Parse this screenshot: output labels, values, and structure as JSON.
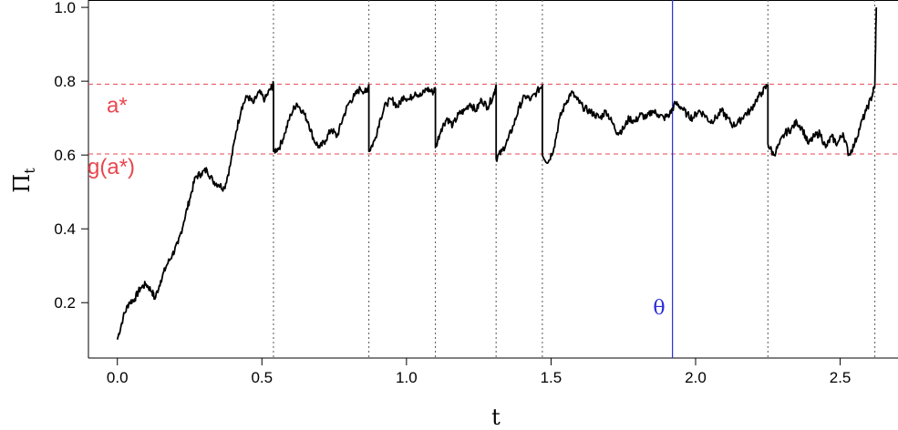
{
  "chart_data": {
    "type": "line",
    "title": "",
    "xlabel": "t",
    "ylabel_main": "Π",
    "ylabel_sub": "t",
    "xlim": [
      -0.1,
      2.7
    ],
    "ylim": [
      0.05,
      1.02
    ],
    "x_ticks": [
      0.0,
      0.5,
      1.0,
      1.5,
      2.0,
      2.5
    ],
    "x_tick_labels": [
      "0.0",
      "0.5",
      "1.0",
      "1.5",
      "2.0",
      "2.5"
    ],
    "y_ticks": [
      0.2,
      0.4,
      0.6,
      0.8,
      1.0
    ],
    "y_tick_labels": [
      "0.2",
      "0.4",
      "0.6",
      "0.8",
      "1.0"
    ],
    "grid": false,
    "colors": {
      "path": "#000000",
      "threshold": "#e8474f",
      "theta": "#2b2bd9",
      "reset": "#555555"
    },
    "h_lines": [
      {
        "y": 0.792,
        "label": "a*"
      },
      {
        "y": 0.603,
        "label": "g(a*)"
      }
    ],
    "v_reset_lines": [
      0.54,
      0.87,
      1.1,
      1.31,
      1.47,
      2.25,
      2.62
    ],
    "theta_line": {
      "x": 1.92,
      "label": "θ"
    },
    "series": [
      {
        "values": [
          [
            0.0,
            0.1
          ],
          [
            0.02,
            0.16
          ],
          [
            0.04,
            0.2
          ],
          [
            0.06,
            0.21
          ],
          [
            0.08,
            0.24
          ],
          [
            0.1,
            0.25
          ],
          [
            0.12,
            0.23
          ],
          [
            0.13,
            0.21
          ],
          [
            0.15,
            0.26
          ],
          [
            0.17,
            0.3
          ],
          [
            0.19,
            0.33
          ],
          [
            0.21,
            0.36
          ],
          [
            0.23,
            0.42
          ],
          [
            0.25,
            0.48
          ],
          [
            0.27,
            0.54
          ],
          [
            0.29,
            0.55
          ],
          [
            0.31,
            0.56
          ],
          [
            0.33,
            0.53
          ],
          [
            0.35,
            0.52
          ],
          [
            0.37,
            0.51
          ],
          [
            0.39,
            0.57
          ],
          [
            0.41,
            0.66
          ],
          [
            0.43,
            0.73
          ],
          [
            0.45,
            0.76
          ],
          [
            0.47,
            0.74
          ],
          [
            0.49,
            0.77
          ],
          [
            0.51,
            0.75
          ],
          [
            0.53,
            0.78
          ],
          [
            0.54,
            0.79
          ],
          [
            0.54,
            0.61
          ],
          [
            0.56,
            0.62
          ],
          [
            0.58,
            0.66
          ],
          [
            0.6,
            0.71
          ],
          [
            0.62,
            0.74
          ],
          [
            0.64,
            0.72
          ],
          [
            0.66,
            0.69
          ],
          [
            0.68,
            0.64
          ],
          [
            0.7,
            0.62
          ],
          [
            0.72,
            0.64
          ],
          [
            0.74,
            0.67
          ],
          [
            0.76,
            0.65
          ],
          [
            0.78,
            0.7
          ],
          [
            0.8,
            0.74
          ],
          [
            0.82,
            0.76
          ],
          [
            0.84,
            0.78
          ],
          [
            0.86,
            0.77
          ],
          [
            0.87,
            0.79
          ],
          [
            0.87,
            0.61
          ],
          [
            0.89,
            0.64
          ],
          [
            0.91,
            0.7
          ],
          [
            0.93,
            0.74
          ],
          [
            0.95,
            0.75
          ],
          [
            0.97,
            0.73
          ],
          [
            0.99,
            0.76
          ],
          [
            1.01,
            0.75
          ],
          [
            1.03,
            0.77
          ],
          [
            1.05,
            0.76
          ],
          [
            1.07,
            0.78
          ],
          [
            1.09,
            0.77
          ],
          [
            1.1,
            0.78
          ],
          [
            1.1,
            0.62
          ],
          [
            1.12,
            0.67
          ],
          [
            1.14,
            0.7
          ],
          [
            1.16,
            0.68
          ],
          [
            1.18,
            0.71
          ],
          [
            1.2,
            0.72
          ],
          [
            1.22,
            0.74
          ],
          [
            1.24,
            0.72
          ],
          [
            1.26,
            0.75
          ],
          [
            1.28,
            0.73
          ],
          [
            1.3,
            0.76
          ],
          [
            1.31,
            0.79
          ],
          [
            1.31,
            0.59
          ],
          [
            1.33,
            0.61
          ],
          [
            1.35,
            0.64
          ],
          [
            1.37,
            0.68
          ],
          [
            1.39,
            0.73
          ],
          [
            1.41,
            0.76
          ],
          [
            1.43,
            0.75
          ],
          [
            1.45,
            0.77
          ],
          [
            1.47,
            0.79
          ],
          [
            1.47,
            0.6
          ],
          [
            1.49,
            0.58
          ],
          [
            1.51,
            0.62
          ],
          [
            1.53,
            0.7
          ],
          [
            1.55,
            0.74
          ],
          [
            1.57,
            0.77
          ],
          [
            1.59,
            0.75
          ],
          [
            1.61,
            0.73
          ],
          [
            1.63,
            0.72
          ],
          [
            1.65,
            0.71
          ],
          [
            1.67,
            0.7
          ],
          [
            1.69,
            0.72
          ],
          [
            1.71,
            0.69
          ],
          [
            1.73,
            0.66
          ],
          [
            1.75,
            0.67
          ],
          [
            1.77,
            0.7
          ],
          [
            1.79,
            0.69
          ],
          [
            1.81,
            0.71
          ],
          [
            1.83,
            0.7
          ],
          [
            1.85,
            0.72
          ],
          [
            1.87,
            0.71
          ],
          [
            1.89,
            0.7
          ],
          [
            1.91,
            0.71
          ],
          [
            1.93,
            0.74
          ],
          [
            1.95,
            0.73
          ],
          [
            1.97,
            0.71
          ],
          [
            1.99,
            0.7
          ],
          [
            2.01,
            0.72
          ],
          [
            2.03,
            0.71
          ],
          [
            2.05,
            0.69
          ],
          [
            2.07,
            0.7
          ],
          [
            2.09,
            0.72
          ],
          [
            2.11,
            0.7
          ],
          [
            2.13,
            0.68
          ],
          [
            2.15,
            0.69
          ],
          [
            2.17,
            0.71
          ],
          [
            2.19,
            0.72
          ],
          [
            2.21,
            0.75
          ],
          [
            2.23,
            0.77
          ],
          [
            2.25,
            0.79
          ],
          [
            2.25,
            0.63
          ],
          [
            2.27,
            0.6
          ],
          [
            2.29,
            0.63
          ],
          [
            2.31,
            0.66
          ],
          [
            2.33,
            0.67
          ],
          [
            2.35,
            0.69
          ],
          [
            2.37,
            0.67
          ],
          [
            2.39,
            0.63
          ],
          [
            2.41,
            0.65
          ],
          [
            2.43,
            0.66
          ],
          [
            2.45,
            0.62
          ],
          [
            2.47,
            0.65
          ],
          [
            2.49,
            0.63
          ],
          [
            2.51,
            0.66
          ],
          [
            2.53,
            0.6
          ],
          [
            2.55,
            0.63
          ],
          [
            2.57,
            0.68
          ],
          [
            2.59,
            0.72
          ],
          [
            2.61,
            0.76
          ],
          [
            2.62,
            0.79
          ],
          [
            2.625,
            1.0
          ]
        ]
      }
    ]
  }
}
